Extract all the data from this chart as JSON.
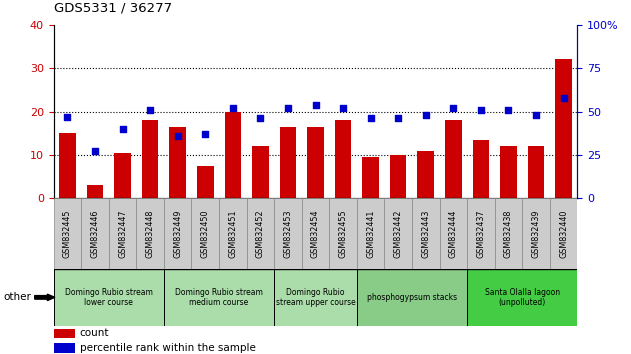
{
  "title": "GDS5331 / 36277",
  "samples": [
    "GSM832445",
    "GSM832446",
    "GSM832447",
    "GSM832448",
    "GSM832449",
    "GSM832450",
    "GSM832451",
    "GSM832452",
    "GSM832453",
    "GSM832454",
    "GSM832455",
    "GSM832441",
    "GSM832442",
    "GSM832443",
    "GSM832444",
    "GSM832437",
    "GSM832438",
    "GSM832439",
    "GSM832440"
  ],
  "counts": [
    15,
    3,
    10.5,
    18,
    16.5,
    7.5,
    20,
    12,
    16.5,
    16.5,
    18,
    9.5,
    10,
    11,
    18,
    13.5,
    12,
    12,
    32
  ],
  "percentile_ranks": [
    47,
    27,
    40,
    51,
    36,
    37,
    52,
    46,
    52,
    54,
    52,
    46,
    46,
    48,
    52,
    51,
    51,
    48,
    58
  ],
  "bar_color": "#cc0000",
  "dot_color": "#0000cc",
  "ylim_left": [
    0,
    40
  ],
  "ylim_right": [
    0,
    100
  ],
  "yticks_left": [
    0,
    10,
    20,
    30,
    40
  ],
  "yticks_right": [
    0,
    25,
    50,
    75,
    100
  ],
  "groups": [
    {
      "label": "Domingo Rubio stream\nlower course",
      "start": 0,
      "end": 4,
      "color": "#aaddaa"
    },
    {
      "label": "Domingo Rubio stream\nmedium course",
      "start": 4,
      "end": 8,
      "color": "#aaddaa"
    },
    {
      "label": "Domingo Rubio\nstream upper course",
      "start": 8,
      "end": 11,
      "color": "#aaddaa"
    },
    {
      "label": "phosphogypsum stacks",
      "start": 11,
      "end": 15,
      "color": "#88cc88"
    },
    {
      "label": "Santa Olalla lagoon\n(unpolluted)",
      "start": 15,
      "end": 19,
      "color": "#44cc44"
    }
  ],
  "other_label": "other",
  "bar_color_legend": "#cc0000",
  "dot_color_legend": "#0000cc",
  "left_tick_color": "#cc0000",
  "right_tick_color": "#0000cc",
  "ticklabel_bg": "#cccccc",
  "ticklabel_border": "#888888"
}
